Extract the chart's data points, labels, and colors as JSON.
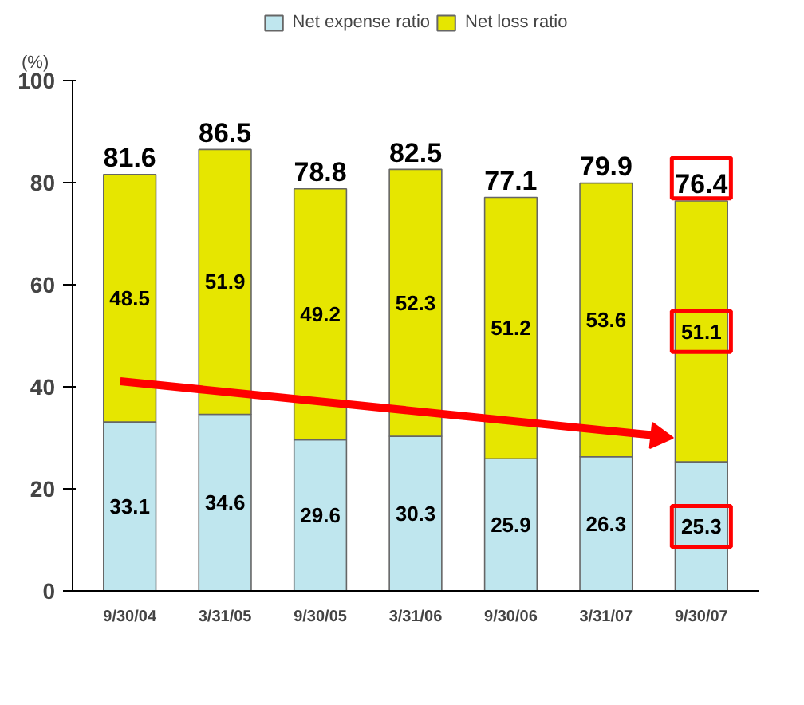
{
  "chart_data": {
    "type": "bar",
    "stacked": true,
    "ylabel": "(%)",
    "categories": [
      "9/30/04",
      "3/31/05",
      "9/30/05",
      "3/31/06",
      "9/30/06",
      "3/31/07",
      "9/30/07"
    ],
    "series": [
      {
        "name": "Net expense ratio",
        "color": "#bfe6ee",
        "values": [
          33.1,
          34.6,
          29.6,
          30.3,
          25.9,
          26.3,
          25.3
        ]
      },
      {
        "name": "Net loss ratio",
        "color": "#e6e600",
        "values": [
          48.5,
          51.9,
          49.2,
          52.3,
          51.2,
          53.6,
          51.1
        ]
      }
    ],
    "totals": [
      "81.6",
      "86.5",
      "78.8",
      "82.5",
      "77.1",
      "79.9",
      "76.4"
    ],
    "data_labels": true,
    "ylim": [
      0,
      100
    ],
    "yticks": [
      0,
      20,
      40,
      60,
      80,
      100
    ],
    "grid": false,
    "legend": "top"
  }
}
